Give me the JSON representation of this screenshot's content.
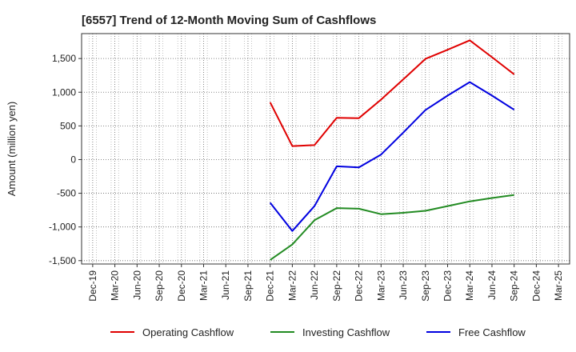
{
  "chart_data": {
    "type": "line",
    "title": "[6557]  Trend of 12-Month Moving Sum of Cashflows",
    "xlabel": "",
    "ylabel": "Amount (million yen)",
    "categories": [
      "Dec-19",
      "Mar-20",
      "Jun-20",
      "Sep-20",
      "Dec-20",
      "Mar-21",
      "Jun-21",
      "Sep-21",
      "Dec-21",
      "Mar-22",
      "Jun-22",
      "Sep-22",
      "Dec-22",
      "Mar-23",
      "Jun-23",
      "Sep-23",
      "Dec-23",
      "Mar-24",
      "Jun-24",
      "Sep-24",
      "Dec-24",
      "Mar-25"
    ],
    "ylim": [
      -1550,
      1870
    ],
    "yticks": [
      -1500,
      -1000,
      -500,
      0,
      500,
      1000,
      1500
    ],
    "ytick_labels": [
      "-1,500",
      "-1,000",
      "-500",
      "0",
      "500",
      "1,000",
      "1,500"
    ],
    "grid": true,
    "legend_position": "bottom",
    "series": [
      {
        "name": "Operating Cashflow",
        "color": "#e00000",
        "values": [
          null,
          null,
          null,
          null,
          null,
          null,
          null,
          null,
          850,
          200,
          215,
          620,
          615,
          890,
          1190,
          1495,
          1630,
          1770,
          1520,
          1265,
          null,
          null
        ]
      },
      {
        "name": "Investing Cashflow",
        "color": "#228b22",
        "values": [
          null,
          null,
          null,
          null,
          null,
          null,
          null,
          null,
          -1490,
          -1260,
          -900,
          -720,
          -730,
          -810,
          -790,
          -760,
          -690,
          -620,
          -570,
          -525,
          null,
          null
        ]
      },
      {
        "name": "Free Cashflow",
        "color": "#0000e0",
        "values": [
          null,
          null,
          null,
          null,
          null,
          null,
          null,
          null,
          -640,
          -1060,
          -690,
          -100,
          -115,
          75,
          400,
          735,
          950,
          1150,
          950,
          740,
          null,
          null
        ]
      }
    ]
  }
}
